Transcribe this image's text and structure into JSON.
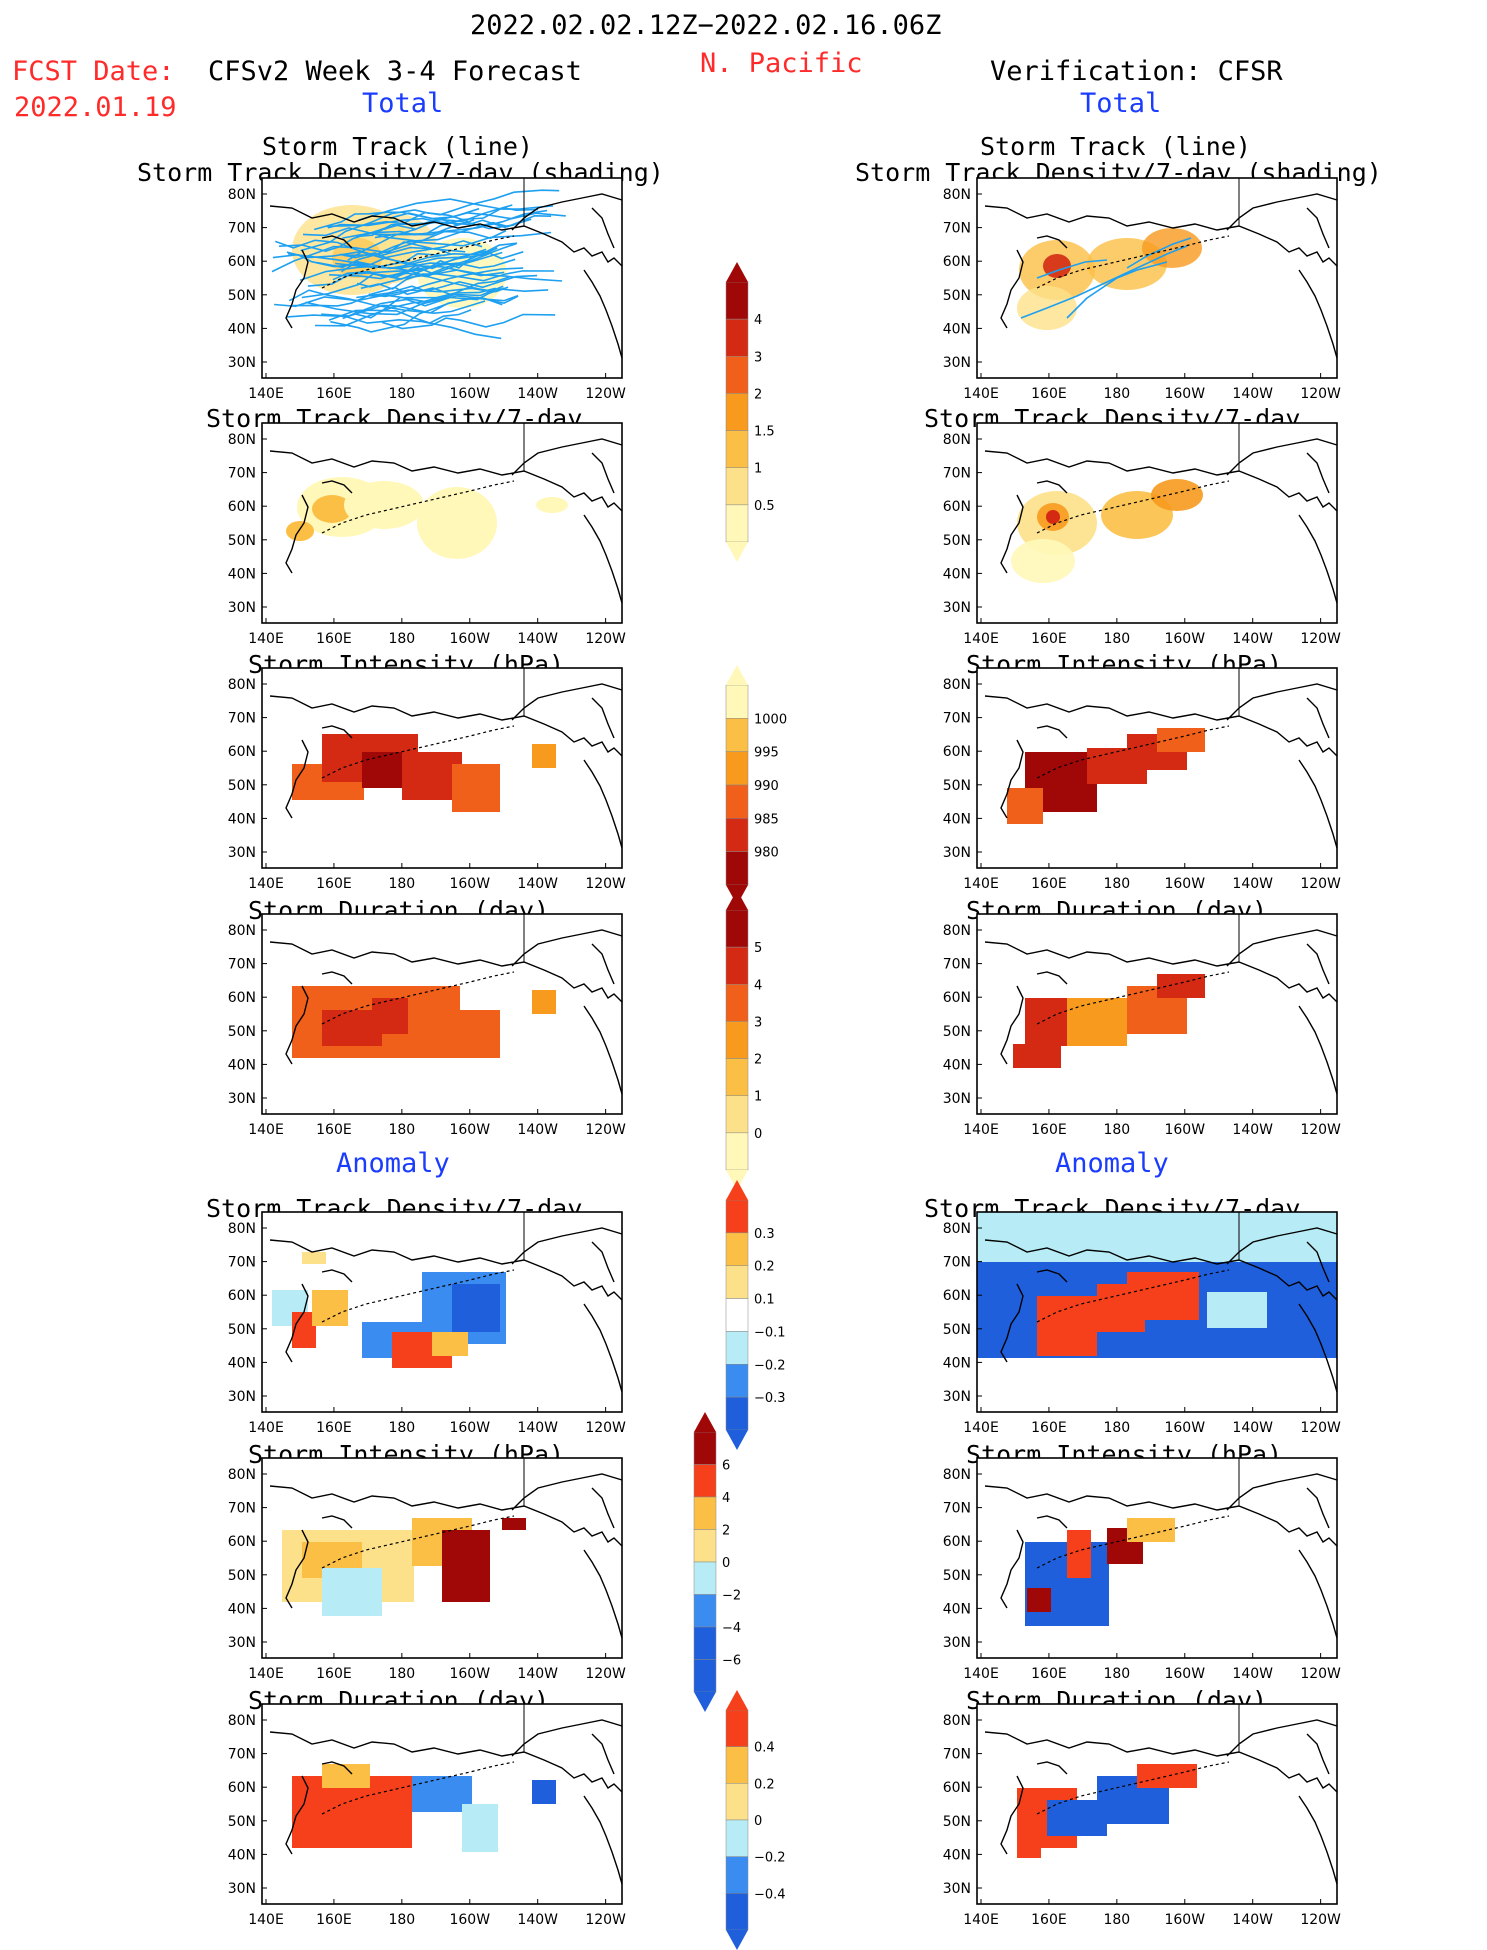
{
  "header": {
    "date_range": "2022.02.02.12Z−2022.02.16.06Z",
    "fcst_label": "FCST Date:",
    "fcst_date": "2022.01.19",
    "model_title": "CFSv2 Week 3-4 Forecast",
    "region": "N. Pacific",
    "verification_title": "Verification: CFSR"
  },
  "section_labels": {
    "total": "Total",
    "anomaly": "Anomaly"
  },
  "map_axes": {
    "lat_labels": [
      "80N",
      "70N",
      "60N",
      "50N",
      "40N",
      "30N"
    ],
    "lon_labels": [
      "140E",
      "160E",
      "180",
      "160W",
      "140W",
      "120W"
    ]
  },
  "panel_titles": {
    "track_line": "Storm Track (line)",
    "track_shading": "Storm Track Density/7-day (shading)",
    "density": "Storm Track Density/7-day",
    "intensity": "Storm Intensity (hPa)",
    "duration": "Storm Duration (day)"
  },
  "colorbars": {
    "density": [
      "4",
      "3",
      "2",
      "1.5",
      "1",
      "0.5"
    ],
    "intensity": [
      "1000",
      "995",
      "990",
      "985",
      "980"
    ],
    "duration": [
      "5",
      "4",
      "3",
      "2",
      "1",
      "0"
    ],
    "density_anom": [
      "0.3",
      "0.2",
      "0.1",
      "−0.1",
      "−0.2",
      "−0.3"
    ],
    "intensity_anom": [
      "6",
      "4",
      "2",
      "0",
      "−2",
      "−4",
      "−6"
    ],
    "duration_anom": [
      "0.4",
      "0.2",
      "0",
      "−0.2",
      "−0.4"
    ]
  },
  "colors": {
    "title_red": "#ff2a2a",
    "label_blue": "#1a3cff",
    "track_line": "#1ea0f0",
    "warm_scale": [
      "#fff8b8",
      "#fde18a",
      "#fbbf45",
      "#f79a1e",
      "#f0601b",
      "#d42a14",
      "#a00808"
    ],
    "anom_scale": [
      "#1f5fdc",
      "#3b8cf0",
      "#b7ecf6",
      "#ffffff",
      "#fde18a",
      "#fbbf45",
      "#f5401b"
    ]
  }
}
